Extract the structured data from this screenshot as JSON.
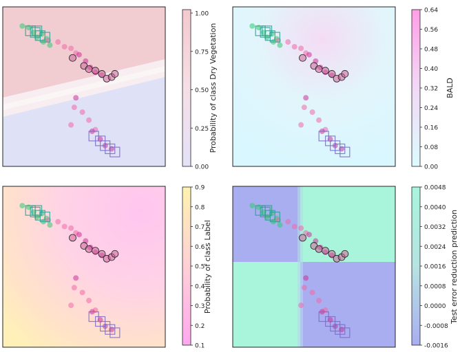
{
  "chart_data": [
    {
      "type": "heatmap",
      "panel": "top-left",
      "background": "two-region decision surface, pink (upper) / lavender (lower)",
      "colorbar": {
        "label": "Probability of class Dry Vegetation",
        "ticks": [
          "0.00",
          "0.25",
          "0.50",
          "0.75",
          "1.00"
        ],
        "range": [
          0,
          1
        ],
        "colors": [
          "#e3e2f8",
          "#f6dfe6",
          "#f4c9cf"
        ]
      }
    },
    {
      "type": "heatmap",
      "panel": "top-right",
      "background": "mostly light cyan with faint pink patches",
      "colorbar": {
        "label": "BALD",
        "ticks": [
          "0.00",
          "0.08",
          "0.16",
          "0.24",
          "0.32",
          "0.40",
          "0.48",
          "0.56",
          "0.64"
        ],
        "range": [
          0,
          0.64
        ],
        "colors": [
          "#dcfbff",
          "#f2d9f6",
          "#ff9ee6"
        ]
      }
    },
    {
      "type": "heatmap",
      "panel": "bottom-left",
      "background": "pink center fading to cream toward the lower-left",
      "colorbar": {
        "label": "Probability of class Label",
        "ticks": [
          "0.1",
          "0.2",
          "0.3",
          "0.4",
          "0.5",
          "0.6",
          "0.7",
          "0.8",
          "0.9"
        ],
        "range": [
          0.1,
          0.9
        ],
        "colors": [
          "#ffa8f0",
          "#ffd0d6",
          "#fff2b0"
        ]
      }
    },
    {
      "type": "heatmap",
      "panel": "bottom-right",
      "background": "quadrants: blue (top-left, bottom-right), mint green (top-right, bottom-left)",
      "colorbar": {
        "label": "Test error reduction prediction",
        "ticks": [
          "-0.0016",
          "-0.0008",
          "0.0000",
          "0.0008",
          "0.0016",
          "0.0024",
          "0.0032",
          "0.0040",
          "0.0048"
        ],
        "range": [
          -0.0016,
          0.0048
        ],
        "colors": [
          "#a9aef0",
          "#b7e3e2",
          "#a8f5dc"
        ]
      }
    }
  ],
  "scatter_groups": [
    {
      "name": "green-points",
      "color": "#2ecc71",
      "points": [
        [
          0.12,
          0.12
        ],
        [
          0.16,
          0.13
        ],
        [
          0.19,
          0.16
        ],
        [
          0.21,
          0.19
        ],
        [
          0.25,
          0.22
        ],
        [
          0.29,
          0.24
        ],
        [
          0.24,
          0.17
        ],
        [
          0.27,
          0.2
        ]
      ]
    },
    {
      "name": "pink-points",
      "color": "#ee6aa7",
      "points": [
        [
          0.28,
          0.21
        ],
        [
          0.34,
          0.22
        ],
        [
          0.38,
          0.25
        ],
        [
          0.42,
          0.26
        ],
        [
          0.45,
          0.29
        ],
        [
          0.42,
          0.74
        ],
        [
          0.44,
          0.63
        ],
        [
          0.49,
          0.66
        ],
        [
          0.53,
          0.71
        ],
        [
          0.57,
          0.77
        ]
      ]
    },
    {
      "name": "magenta-points",
      "color": "#cc3399",
      "points": [
        [
          0.47,
          0.3
        ],
        [
          0.51,
          0.34
        ],
        [
          0.54,
          0.38
        ],
        [
          0.57,
          0.41
        ],
        [
          0.61,
          0.43
        ],
        [
          0.45,
          0.57
        ],
        [
          0.55,
          0.78
        ],
        [
          0.6,
          0.83
        ],
        [
          0.63,
          0.87
        ],
        [
          0.67,
          0.89
        ]
      ]
    },
    {
      "name": "circled-points",
      "color": "#cc6699",
      "points": [
        [
          0.43,
          0.32
        ],
        [
          0.5,
          0.37
        ],
        [
          0.53,
          0.39
        ],
        [
          0.57,
          0.4
        ],
        [
          0.61,
          0.42
        ],
        [
          0.64,
          0.45
        ],
        [
          0.67,
          0.44
        ],
        [
          0.69,
          0.42
        ]
      ]
    },
    {
      "name": "square-markers-green",
      "color": "#2a9d8f",
      "points": [
        [
          0.17,
          0.15
        ],
        [
          0.2,
          0.16
        ],
        [
          0.23,
          0.18
        ],
        [
          0.26,
          0.19
        ],
        [
          0.21,
          0.15
        ]
      ]
    },
    {
      "name": "square-markers-purple",
      "color": "#7b68c6",
      "points": [
        [
          0.56,
          0.81
        ],
        [
          0.6,
          0.84
        ],
        [
          0.63,
          0.87
        ],
        [
          0.66,
          0.89
        ],
        [
          0.69,
          0.91
        ]
      ]
    }
  ]
}
